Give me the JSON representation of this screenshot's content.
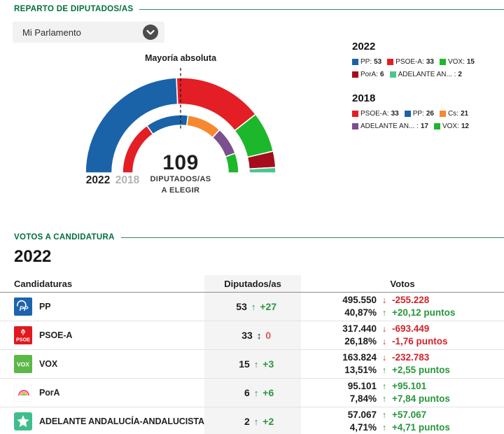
{
  "reparto": {
    "section_title": "REPARTO DE DIPUTADOS/AS",
    "dropdown_value": "Mi Parlamento"
  },
  "chart_data": {
    "type": "hemicycle-donut",
    "title": "Reparto de diputados/as",
    "majority_line_label": "Mayoría absoluta",
    "total_seats": 109,
    "total_label_value": "109",
    "total_label_line1": "DIPUTADOS/AS",
    "total_label_line2": "A ELEGIR",
    "rings": [
      {
        "year": "2022",
        "position": "outer",
        "segments": [
          {
            "party": "PP",
            "seats": 53,
            "color": "#1a63a9"
          },
          {
            "party": "PSOE-A",
            "seats": 33,
            "color": "#e31e24"
          },
          {
            "party": "VOX",
            "seats": 15,
            "color": "#1db72b"
          },
          {
            "party": "PorA",
            "seats": 6,
            "color": "#a50d1c"
          },
          {
            "party": "ADELANTE AN...",
            "seats": 2,
            "color": "#4cc690"
          }
        ]
      },
      {
        "year": "2018",
        "position": "inner",
        "segments": [
          {
            "party": "PSOE-A",
            "seats": 33,
            "color": "#e31e24"
          },
          {
            "party": "PP",
            "seats": 26,
            "color": "#1a63a9"
          },
          {
            "party": "Cs",
            "seats": 21,
            "color": "#f6892f"
          },
          {
            "party": "ADELANTE AN...",
            "seats": 17,
            "color": "#7c4f8e"
          },
          {
            "party": "VOX",
            "seats": 12,
            "color": "#1db72b"
          }
        ]
      }
    ]
  },
  "legend": {
    "groups": [
      {
        "year": "2022",
        "items": [
          {
            "label": "PP:",
            "value": "53",
            "color": "#1a63a9"
          },
          {
            "label": "PSOE-A:",
            "value": "33",
            "color": "#e31e24"
          },
          {
            "label": "VOX:",
            "value": "15",
            "color": "#1db72b"
          },
          {
            "label": "PorA:",
            "value": "6",
            "color": "#a50d1c"
          },
          {
            "label": "ADELANTE AN... :",
            "value": "2",
            "color": "#4cc690"
          }
        ]
      },
      {
        "year": "2018",
        "items": [
          {
            "label": "PSOE-A:",
            "value": "33",
            "color": "#e31e24"
          },
          {
            "label": "PP:",
            "value": "26",
            "color": "#1a63a9"
          },
          {
            "label": "Cs:",
            "value": "21",
            "color": "#f6892f"
          },
          {
            "label": "ADELANTE AN... :",
            "value": "17",
            "color": "#7c4f8e"
          },
          {
            "label": "VOX:",
            "value": "12",
            "color": "#1db72b"
          }
        ]
      }
    ]
  },
  "votos": {
    "section_title": "VOTOS A CANDIDATURA",
    "year_heading": "2022",
    "headers": {
      "candidaturas": "Candidaturas",
      "diputados": "Diputados/as",
      "votos": "Votos"
    },
    "rows": [
      {
        "logo": "pp",
        "party": "PP",
        "seats": "53",
        "seats_trend": "up",
        "seats_change": "+27",
        "votes": "495.550",
        "votes_trend": "down",
        "votes_change": "-255.228",
        "pct": "40,87%",
        "pct_trend": "up",
        "pct_change": "+20,12 puntos"
      },
      {
        "logo": "psoe",
        "party": "PSOE-A",
        "seats": "33",
        "seats_trend": "flat",
        "seats_change": "0",
        "votes": "317.440",
        "votes_trend": "down",
        "votes_change": "-693.449",
        "pct": "26,18%",
        "pct_trend": "down",
        "pct_change": "-1,76 puntos"
      },
      {
        "logo": "vox",
        "party": "VOX",
        "seats": "15",
        "seats_trend": "up",
        "seats_change": "+3",
        "votes": "163.824",
        "votes_trend": "down",
        "votes_change": "-232.783",
        "pct": "13,51%",
        "pct_trend": "up",
        "pct_change": "+2,55 puntos"
      },
      {
        "logo": "pora",
        "party": "PorA",
        "seats": "6",
        "seats_trend": "up",
        "seats_change": "+6",
        "votes": "95.101",
        "votes_trend": "up",
        "votes_change": "+95.101",
        "pct": "7,84%",
        "pct_trend": "up",
        "pct_change": "+7,84 puntos"
      },
      {
        "logo": "adelante",
        "party": "ADELANTE ANDALUCÍA-ANDALUCISTAS",
        "seats": "2",
        "seats_trend": "up",
        "seats_change": "+2",
        "votes": "57.067",
        "votes_trend": "up",
        "votes_change": "+57.067",
        "pct": "4,71%",
        "pct_trend": "up",
        "pct_change": "+4,71 puntos"
      }
    ]
  },
  "logos": {
    "pp": "PP",
    "psoe": "PSOE",
    "vox": "VOX"
  },
  "icons": {
    "up_arrow": "↑",
    "down_arrow": "↓",
    "flat_arrow": "↕"
  },
  "colors": {
    "accent_green": "#006f3f",
    "positive": "#28963c",
    "negative": "#d2232a",
    "flat_value": "#d8565e"
  }
}
